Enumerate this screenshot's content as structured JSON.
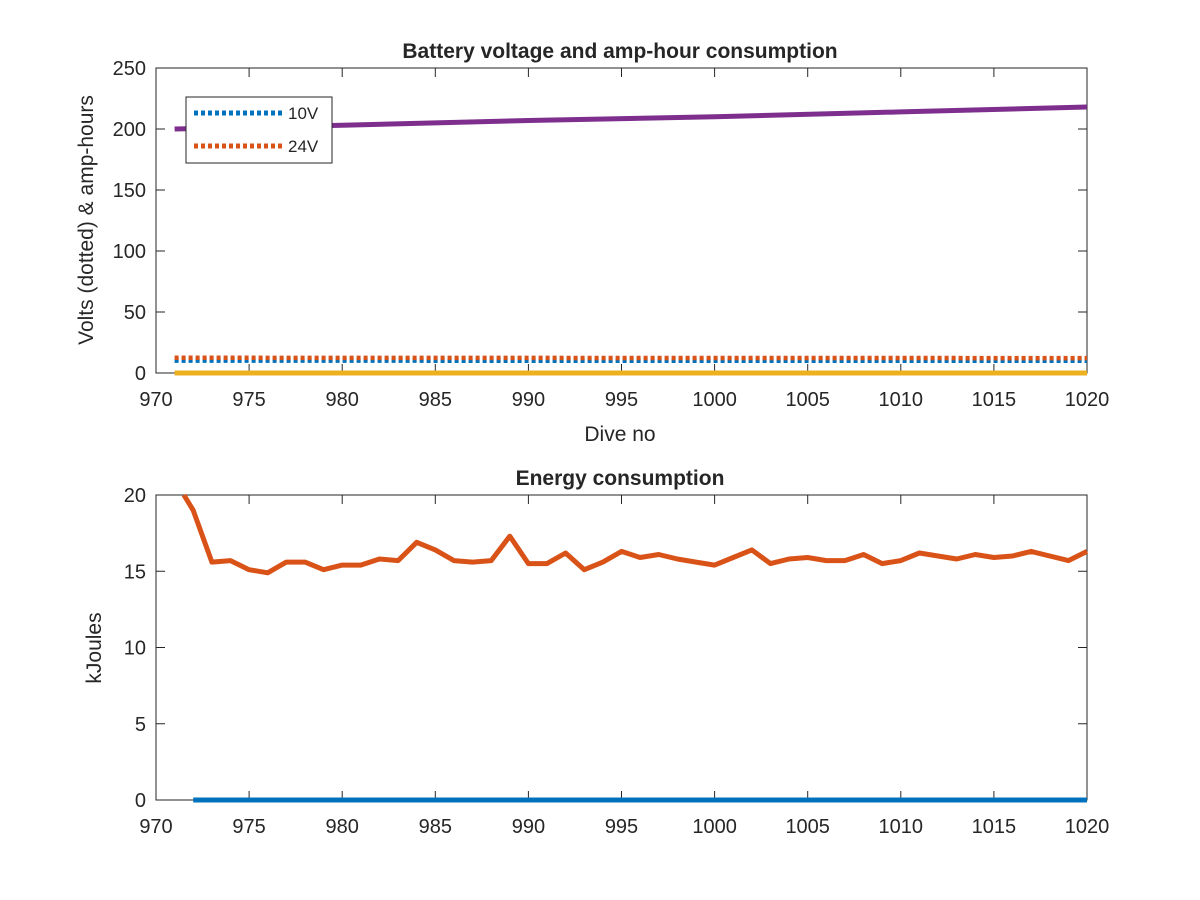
{
  "chart_data": [
    {
      "type": "line",
      "title": "Battery voltage and amp-hour consumption",
      "xlabel": "Dive no",
      "ylabel": "Volts (dotted) & amp-hours",
      "xlim": [
        970,
        1020
      ],
      "ylim": [
        0,
        250
      ],
      "xticks": [
        970,
        975,
        980,
        985,
        990,
        995,
        1000,
        1005,
        1010,
        1015,
        1020
      ],
      "yticks": [
        0,
        50,
        100,
        150,
        200,
        250
      ],
      "legend": {
        "placement": "top-left",
        "entries": [
          "10V",
          "24V"
        ]
      },
      "series": [
        {
          "name": "10V",
          "style": "dotted",
          "color": "#0072BD",
          "x": [
            971,
            975,
            980,
            985,
            990,
            995,
            1000,
            1005,
            1010,
            1015,
            1020
          ],
          "values": [
            10.2,
            10.2,
            10.2,
            10.1,
            10.1,
            10.1,
            10.0,
            10.0,
            10.0,
            10.0,
            10.0
          ]
        },
        {
          "name": "24V",
          "style": "dotted",
          "color": "#D95319",
          "x": [
            971,
            975,
            980,
            985,
            990,
            995,
            1000,
            1005,
            1010,
            1015,
            1020
          ],
          "values": [
            12.5,
            12.5,
            12.4,
            12.4,
            12.4,
            12.3,
            12.3,
            12.3,
            12.3,
            12.2,
            12.2
          ]
        },
        {
          "style": "solid",
          "color": "#EDB120",
          "x": [
            971,
            1020
          ],
          "values": [
            0,
            0
          ]
        },
        {
          "style": "solid",
          "color": "#7E2F8E",
          "x": [
            971,
            980,
            990,
            1000,
            1010,
            1020
          ],
          "values": [
            200,
            203,
            207,
            210,
            214,
            218
          ]
        }
      ]
    },
    {
      "type": "line",
      "title": "Energy consumption",
      "xlabel": "",
      "ylabel": "kJoules",
      "xlim": [
        970,
        1020
      ],
      "ylim": [
        0,
        20
      ],
      "xticks": [
        970,
        975,
        980,
        985,
        990,
        995,
        1000,
        1005,
        1010,
        1015,
        1020
      ],
      "yticks": [
        0,
        5,
        10,
        15,
        20
      ],
      "series": [
        {
          "style": "solid",
          "color": "#D95319",
          "x": [
            971.5,
            972,
            973,
            974,
            975,
            976,
            977,
            978,
            979,
            980,
            981,
            982,
            983,
            984,
            985,
            986,
            987,
            988,
            989,
            990,
            991,
            992,
            993,
            994,
            995,
            996,
            997,
            998,
            999,
            1000,
            1001,
            1002,
            1003,
            1004,
            1005,
            1006,
            1007,
            1008,
            1009,
            1010,
            1011,
            1012,
            1013,
            1014,
            1015,
            1016,
            1017,
            1018,
            1019,
            1020
          ],
          "values": [
            20,
            19.0,
            15.6,
            15.7,
            15.1,
            14.9,
            15.6,
            15.6,
            15.1,
            15.4,
            15.4,
            15.8,
            15.7,
            16.9,
            16.4,
            15.7,
            15.6,
            15.7,
            17.3,
            15.5,
            15.5,
            16.2,
            15.1,
            15.6,
            16.3,
            15.9,
            16.1,
            15.8,
            15.6,
            15.4,
            15.9,
            16.4,
            15.5,
            15.8,
            15.9,
            15.7,
            15.7,
            16.1,
            15.5,
            15.7,
            16.2,
            16.0,
            15.8,
            16.1,
            15.9,
            16.0,
            16.3,
            16.0,
            15.7,
            16.3
          ]
        },
        {
          "style": "solid",
          "color": "#0072BD",
          "x": [
            972,
            1020
          ],
          "values": [
            0,
            0
          ]
        }
      ]
    }
  ]
}
